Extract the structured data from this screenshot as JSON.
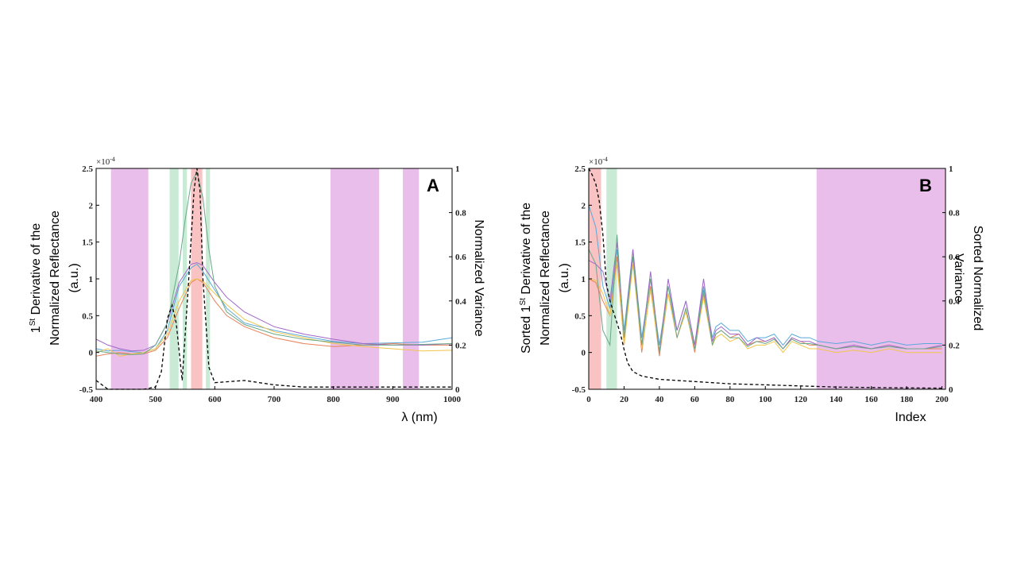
{
  "chart_data": [
    {
      "type": "line",
      "panel": "A",
      "xlabel": "λ (nm)",
      "ylabel_line1_pre": "1",
      "ylabel_line1_sup": "St",
      "ylabel_line1_post": " Derivative  of the",
      "ylabel_line2": "Normalized Reflectance",
      "ylabel_line3": "(a.u.)",
      "y2label": "Normalized Variance",
      "y_exponent_base": "×10",
      "y_exponent_power": "-4",
      "xlim": [
        400,
        1000
      ],
      "ylim": [
        -0.5,
        2.5
      ],
      "y2lim": [
        0,
        1
      ],
      "xticks": [
        "400",
        "500",
        "600",
        "700",
        "800",
        "900",
        "1000"
      ],
      "xtick_values": [
        400,
        500,
        600,
        700,
        800,
        900,
        1000
      ],
      "yticks": [
        "-0.5",
        "0",
        "0.5",
        "1",
        "1.5",
        "2",
        "2.5"
      ],
      "ytick_values": [
        -0.5,
        0,
        0.5,
        1,
        1.5,
        2,
        2.5
      ],
      "y2ticks": [
        "0",
        "0.2",
        "0.4",
        "0.6",
        "0.8",
        "1"
      ],
      "y2tick_values": [
        0,
        0.2,
        0.4,
        0.6,
        0.8,
        1
      ],
      "bands": [
        {
          "from": 425,
          "to": 488,
          "color": "#e6b3e6"
        },
        {
          "from": 524,
          "to": 539,
          "color": "#bfe8cf"
        },
        {
          "from": 546,
          "to": 553,
          "color": "#bfe8cf"
        },
        {
          "from": 560,
          "to": 579,
          "color": "#f8b8b8"
        },
        {
          "from": 585,
          "to": 592,
          "color": "#bfe8cf"
        },
        {
          "from": 795,
          "to": 877,
          "color": "#e6b3e6"
        },
        {
          "from": 917,
          "to": 944,
          "color": "#e6b3e6"
        }
      ],
      "series": [
        {
          "name": "blue",
          "color": "#5aa8d8",
          "x": [
            400,
            420,
            440,
            460,
            480,
            500,
            520,
            540,
            560,
            570,
            580,
            600,
            620,
            650,
            700,
            750,
            800,
            850,
            900,
            950,
            1000
          ],
          "y": [
            0.05,
            0.02,
            0.03,
            0.01,
            0.0,
            0.05,
            0.3,
            0.9,
            1.15,
            1.2,
            1.1,
            0.85,
            0.6,
            0.4,
            0.3,
            0.22,
            0.15,
            0.12,
            0.13,
            0.14,
            0.2
          ]
        },
        {
          "name": "orange",
          "color": "#e8825a",
          "x": [
            400,
            420,
            440,
            460,
            480,
            500,
            520,
            540,
            560,
            570,
            580,
            600,
            620,
            650,
            700,
            750,
            800,
            850,
            900,
            950,
            1000
          ],
          "y": [
            -0.05,
            -0.02,
            0.0,
            -0.02,
            -0.02,
            0.03,
            0.2,
            0.6,
            0.95,
            1.0,
            0.95,
            0.7,
            0.5,
            0.35,
            0.2,
            0.12,
            0.08,
            0.1,
            0.12,
            0.1,
            0.1
          ]
        },
        {
          "name": "yellow",
          "color": "#f0c54a",
          "x": [
            400,
            420,
            440,
            460,
            480,
            500,
            520,
            540,
            560,
            570,
            580,
            600,
            620,
            650,
            700,
            750,
            800,
            850,
            900,
            950,
            1000
          ],
          "y": [
            0.0,
            0.05,
            -0.05,
            -0.02,
            0.0,
            0.05,
            0.25,
            0.7,
            0.98,
            1.0,
            0.97,
            0.8,
            0.65,
            0.45,
            0.28,
            0.2,
            0.12,
            0.08,
            0.05,
            0.02,
            0.03
          ]
        },
        {
          "name": "purple",
          "color": "#a066c8",
          "x": [
            400,
            420,
            440,
            460,
            480,
            500,
            520,
            540,
            560,
            570,
            580,
            600,
            620,
            650,
            700,
            750,
            800,
            850,
            900,
            950,
            1000
          ],
          "y": [
            0.18,
            0.1,
            0.05,
            0.02,
            0.03,
            0.1,
            0.4,
            0.95,
            1.2,
            1.22,
            1.18,
            0.95,
            0.75,
            0.55,
            0.35,
            0.25,
            0.18,
            0.12,
            0.1,
            0.1,
            0.12
          ]
        },
        {
          "name": "green",
          "color": "#6aa88a",
          "x": [
            400,
            420,
            440,
            460,
            480,
            500,
            520,
            540,
            550,
            560,
            570,
            580,
            590,
            600,
            620,
            650,
            700,
            750,
            800,
            850,
            900,
            950,
            1000
          ],
          "y": [
            0.02,
            0.0,
            -0.02,
            -0.03,
            -0.02,
            0.1,
            0.4,
            1.2,
            1.8,
            2.3,
            2.45,
            2.1,
            1.4,
            0.9,
            0.55,
            0.38,
            0.25,
            0.18,
            0.14,
            0.1,
            0.1,
            0.11,
            0.12
          ]
        },
        {
          "name": "normalized-variance",
          "color": "#000000",
          "dashed": true,
          "axis": "right",
          "x": [
            400,
            420,
            440,
            460,
            480,
            500,
            510,
            520,
            528,
            535,
            545,
            555,
            565,
            570,
            575,
            580,
            590,
            600,
            650,
            700,
            750,
            800,
            850,
            900,
            950,
            1000
          ],
          "y": [
            0.04,
            0.0,
            0.0,
            0.0,
            0.0,
            0.01,
            0.08,
            0.32,
            0.38,
            0.3,
            0.04,
            0.45,
            0.9,
            1.0,
            0.9,
            0.5,
            0.1,
            0.03,
            0.04,
            0.02,
            0.01,
            0.01,
            0.01,
            0.01,
            0.01,
            0.01
          ]
        }
      ]
    },
    {
      "type": "line",
      "panel": "B",
      "xlabel": "Index",
      "ylabel_line1_pre": "Sorted 1",
      "ylabel_line1_sup": "St",
      "ylabel_line1_post": " Derivative of the",
      "ylabel_line2": "Normalized Reflectance",
      "ylabel_line3": "(a.u.)",
      "y2label_line1": "Sorted  Normalized",
      "y2label_line2": "Variance",
      "y_exponent_base": "×10",
      "y_exponent_power": "-4",
      "xlim": [
        0,
        202
      ],
      "ylim": [
        -0.5,
        2.5
      ],
      "y2lim": [
        0,
        1
      ],
      "xticks": [
        "0",
        "20",
        "40",
        "60",
        "80",
        "100",
        "120",
        "140",
        "160",
        "180",
        "200"
      ],
      "xtick_values": [
        0,
        20,
        40,
        60,
        80,
        100,
        120,
        140,
        160,
        180,
        200
      ],
      "yticks": [
        "-0.5",
        "0",
        "0.5",
        "1",
        "1.5",
        "2",
        "2.5"
      ],
      "ytick_values": [
        -0.5,
        0,
        0.5,
        1,
        1.5,
        2,
        2.5
      ],
      "y2ticks": [
        "0",
        "0.2",
        "0.4",
        "0.6",
        "0.8",
        "1"
      ],
      "y2tick_values": [
        0,
        0.2,
        0.4,
        0.6,
        0.8,
        1
      ],
      "bands": [
        {
          "from": 0,
          "to": 7,
          "color": "#f8b8b8"
        },
        {
          "from": 10,
          "to": 16,
          "color": "#bfe8cf"
        },
        {
          "from": 129,
          "to": 202,
          "color": "#e6b3e6"
        }
      ],
      "series": [
        {
          "name": "blue",
          "color": "#5aa8d8",
          "x": [
            0,
            4,
            8,
            12,
            16,
            20,
            25,
            30,
            35,
            40,
            45,
            50,
            55,
            60,
            65,
            70,
            72,
            75,
            80,
            85,
            90,
            95,
            100,
            105,
            110,
            115,
            120,
            125,
            130,
            140,
            150,
            160,
            170,
            180,
            190,
            200
          ],
          "y": [
            2.0,
            1.7,
            0.9,
            0.6,
            1.4,
            0.3,
            1.4,
            0.2,
            1.0,
            0.1,
            0.9,
            0.3,
            0.7,
            0.1,
            0.9,
            0.2,
            0.35,
            0.4,
            0.3,
            0.3,
            0.15,
            0.2,
            0.2,
            0.25,
            0.1,
            0.25,
            0.2,
            0.2,
            0.15,
            0.12,
            0.15,
            0.1,
            0.15,
            0.1,
            0.12,
            0.12
          ]
        },
        {
          "name": "orange",
          "color": "#e8825a",
          "x": [
            0,
            4,
            8,
            12,
            16,
            20,
            25,
            30,
            35,
            40,
            45,
            50,
            55,
            60,
            65,
            70,
            72,
            75,
            80,
            85,
            90,
            95,
            100,
            105,
            110,
            115,
            120,
            125,
            130,
            140,
            150,
            160,
            170,
            180,
            190,
            200
          ],
          "y": [
            1.0,
            0.95,
            0.7,
            0.5,
            1.3,
            0.1,
            1.3,
            0.0,
            0.9,
            -0.05,
            0.8,
            0.2,
            0.6,
            0.0,
            0.8,
            0.1,
            0.25,
            0.3,
            0.2,
            0.25,
            0.1,
            0.15,
            0.15,
            0.2,
            0.05,
            0.2,
            0.15,
            0.1,
            0.1,
            0.05,
            0.08,
            0.05,
            0.1,
            0.05,
            0.05,
            0.05
          ]
        },
        {
          "name": "yellow",
          "color": "#f0c54a",
          "x": [
            0,
            4,
            8,
            12,
            16,
            20,
            25,
            30,
            35,
            40,
            45,
            50,
            55,
            60,
            65,
            70,
            72,
            75,
            80,
            85,
            90,
            95,
            100,
            105,
            110,
            115,
            120,
            125,
            130,
            140,
            150,
            160,
            170,
            180,
            190,
            200
          ],
          "y": [
            1.0,
            0.98,
            0.8,
            0.5,
            1.2,
            0.1,
            1.2,
            0.05,
            0.85,
            0.0,
            0.8,
            0.2,
            0.55,
            0.05,
            0.75,
            0.1,
            0.2,
            0.25,
            0.15,
            0.2,
            0.05,
            0.1,
            0.1,
            0.15,
            0.0,
            0.15,
            0.1,
            0.05,
            0.05,
            0.0,
            0.03,
            0.0,
            0.05,
            0.0,
            0.0,
            0.0
          ]
        },
        {
          "name": "purple",
          "color": "#a066c8",
          "x": [
            0,
            4,
            8,
            12,
            16,
            20,
            25,
            30,
            35,
            40,
            45,
            50,
            55,
            60,
            65,
            70,
            72,
            75,
            80,
            85,
            90,
            95,
            100,
            105,
            110,
            115,
            120,
            125,
            130,
            140,
            150,
            160,
            170,
            180,
            190,
            200
          ],
          "y": [
            1.25,
            1.2,
            1.1,
            0.7,
            1.5,
            0.2,
            1.4,
            0.1,
            1.1,
            0.0,
            1.0,
            0.3,
            0.7,
            0.1,
            1.0,
            0.15,
            0.3,
            0.35,
            0.25,
            0.25,
            0.1,
            0.2,
            0.15,
            0.2,
            0.05,
            0.2,
            0.15,
            0.15,
            0.1,
            0.05,
            0.1,
            0.05,
            0.1,
            0.05,
            0.05,
            0.1
          ]
        },
        {
          "name": "green",
          "color": "#6aa88a",
          "x": [
            0,
            4,
            8,
            12,
            16,
            20,
            25,
            30,
            35,
            40,
            45,
            50,
            55,
            60,
            65,
            70,
            72,
            75,
            80,
            85,
            90,
            95,
            100,
            105,
            110,
            115,
            120,
            125,
            130,
            140,
            150,
            160,
            170,
            180,
            190,
            200
          ],
          "y": [
            1.4,
            1.2,
            0.3,
            0.1,
            1.6,
            0.2,
            1.3,
            0.1,
            1.0,
            0.0,
            0.9,
            0.2,
            0.6,
            0.05,
            0.85,
            0.1,
            0.25,
            0.3,
            0.2,
            0.2,
            0.08,
            0.15,
            0.12,
            0.18,
            0.05,
            0.18,
            0.12,
            0.12,
            0.1,
            0.05,
            0.08,
            0.05,
            0.08,
            0.05,
            0.05,
            0.08
          ]
        },
        {
          "name": "sorted-normalized-variance",
          "color": "#000000",
          "dashed": true,
          "axis": "right",
          "x": [
            0,
            2,
            4,
            6,
            8,
            10,
            12,
            14,
            16,
            18,
            20,
            22,
            25,
            30,
            40,
            50,
            60,
            80,
            100,
            120,
            140,
            160,
            180,
            200
          ],
          "y": [
            1.0,
            0.97,
            0.93,
            0.85,
            0.7,
            0.48,
            0.4,
            0.35,
            0.3,
            0.25,
            0.18,
            0.12,
            0.08,
            0.06,
            0.045,
            0.04,
            0.035,
            0.025,
            0.02,
            0.015,
            0.01,
            0.008,
            0.006,
            0.005
          ]
        }
      ]
    }
  ]
}
